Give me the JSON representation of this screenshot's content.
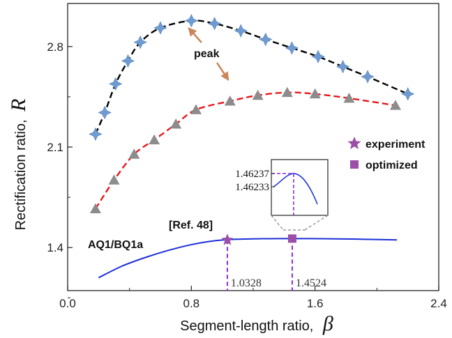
{
  "chart_data": {
    "type": "scatter",
    "xlabel": "Segment-length ratio,",
    "xlabel_symbol": "β",
    "ylabel": "Rectification ratio,",
    "ylabel_symbol": "R",
    "xlim": [
      0.0,
      2.4
    ],
    "ylim": [
      1.1,
      3.1
    ],
    "xticks": [
      0.0,
      0.8,
      1.6,
      2.4
    ],
    "xtick_labels": [
      "0.0",
      "0.8",
      "1.6",
      "2.4"
    ],
    "yticks": [
      1.4,
      2.1,
      2.8
    ],
    "ytick_labels": [
      "1.4",
      "2.1",
      "2.8"
    ],
    "grid": false,
    "legend_position": "right",
    "colors": {
      "top_marker": "#6f9bd1",
      "top_line": "#000000",
      "mid_marker": "#8c8c8c",
      "mid_line": "#e8161b",
      "curve": "#1c2fd9",
      "experiment": "#9b4fa8",
      "optimized": "#9b4fa8",
      "dropline": "#8a2be2",
      "arrow": "#c8875a"
    },
    "series": [
      {
        "style": "star-marker-dashed",
        "x": [
          0.18,
          0.24,
          0.31,
          0.39,
          0.47,
          0.6,
          0.8,
          0.95,
          1.12,
          1.28,
          1.45,
          1.62,
          1.78,
          1.94,
          2.2
        ],
        "y": [
          2.19,
          2.34,
          2.54,
          2.7,
          2.83,
          2.93,
          2.98,
          2.96,
          2.91,
          2.85,
          2.79,
          2.73,
          2.66,
          2.59,
          2.47
        ]
      },
      {
        "style": "triangle-marker-dashed",
        "x": [
          0.18,
          0.3,
          0.43,
          0.56,
          0.7,
          0.83,
          1.05,
          1.23,
          1.42,
          1.6,
          1.82,
          2.12
        ],
        "y": [
          1.67,
          1.87,
          2.05,
          2.15,
          2.26,
          2.36,
          2.42,
          2.46,
          2.48,
          2.47,
          2.44,
          2.39
        ]
      },
      {
        "style": "solid-line",
        "x": [
          0.2,
          0.35,
          0.5,
          0.65,
          0.8,
          0.95,
          1.1,
          1.25,
          1.4526,
          1.65,
          1.85,
          2.05,
          2.13
        ],
        "y": [
          1.19,
          1.27,
          1.33,
          1.38,
          1.42,
          1.447,
          1.458,
          1.4615,
          1.46237,
          1.4615,
          1.459,
          1.455,
          1.453
        ]
      }
    ],
    "experiment_point": {
      "x": 1.0328,
      "y": 1.453
    },
    "optimized_point": {
      "x": 1.4524,
      "y": 1.46237
    },
    "vline_labels": [
      "1.0328",
      "1.4524"
    ],
    "annotations": {
      "peak": "peak",
      "ref": "[Ref. 48]",
      "curve_label": "AQ1/BQ1a"
    },
    "legend": [
      {
        "marker": "star",
        "label": "experiment"
      },
      {
        "marker": "square",
        "label": "optimized"
      }
    ],
    "inset": {
      "ytick_labels": [
        "1.46237",
        "1.46233"
      ]
    }
  }
}
